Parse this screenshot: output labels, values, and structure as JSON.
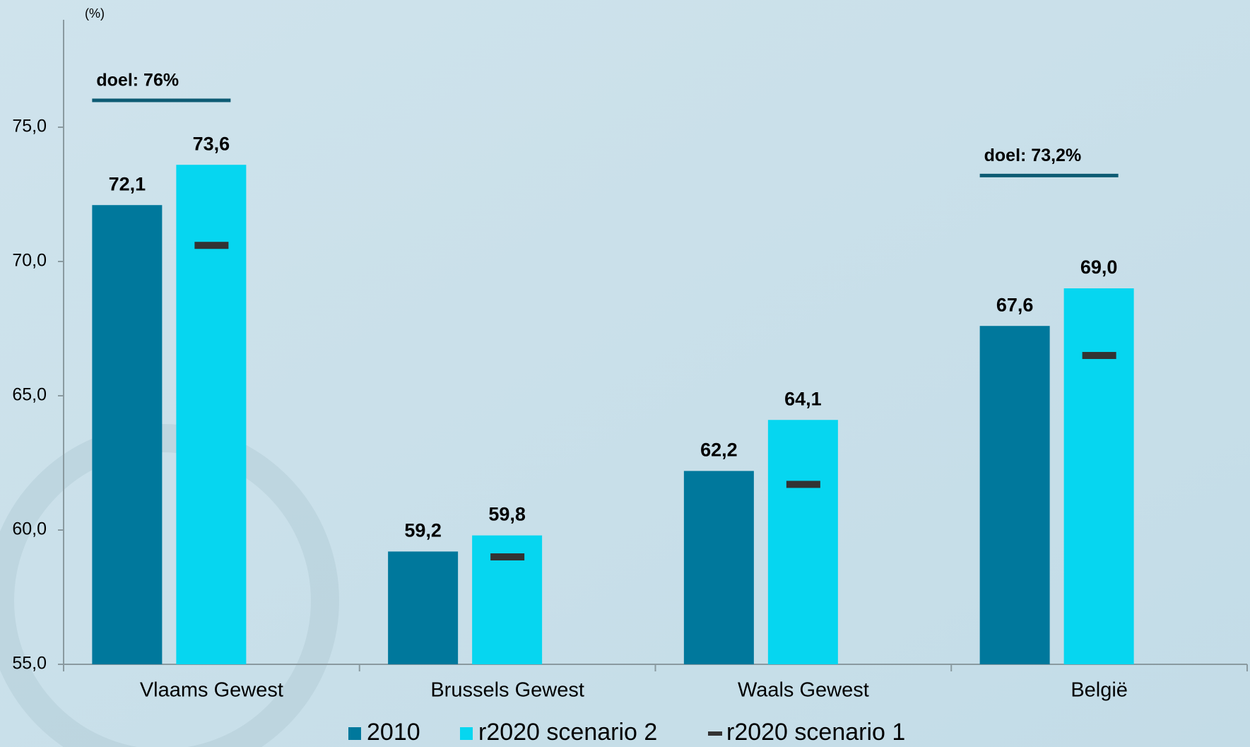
{
  "chart_data": {
    "type": "bar",
    "unit_label": "(%)",
    "categories": [
      "Vlaams Gewest",
      "Brussels Gewest",
      "Waals Gewest",
      "België"
    ],
    "series": [
      {
        "name": "2010",
        "color": "#00789c",
        "values": [
          72.1,
          59.2,
          62.2,
          67.6
        ],
        "value_labels": [
          "72,1",
          "59,2",
          "62,2",
          "67,6"
        ]
      },
      {
        "name": "r2020 scenario 2",
        "color": "#06d6f0",
        "values": [
          73.6,
          59.8,
          64.1,
          69.0
        ],
        "value_labels": [
          "73,6",
          "59,8",
          "64,1",
          "69,0"
        ]
      },
      {
        "name": "r2020 scenario 1",
        "color": "#333333",
        "marker": "dash",
        "values": [
          70.6,
          59.0,
          61.7,
          66.5
        ]
      }
    ],
    "targets": [
      76,
      null,
      null,
      73.2
    ],
    "target_labels": [
      "doel: 76%",
      null,
      null,
      "doel: 73,2%"
    ],
    "target_color": "#0d5b73",
    "ylim": [
      55,
      79
    ],
    "yticks": [
      {
        "value": 55,
        "label": "55,0"
      },
      {
        "value": 60,
        "label": "60,0"
      },
      {
        "value": 65,
        "label": "65,0"
      },
      {
        "value": 70,
        "label": "70,0"
      },
      {
        "value": 75,
        "label": "75,0"
      }
    ]
  }
}
